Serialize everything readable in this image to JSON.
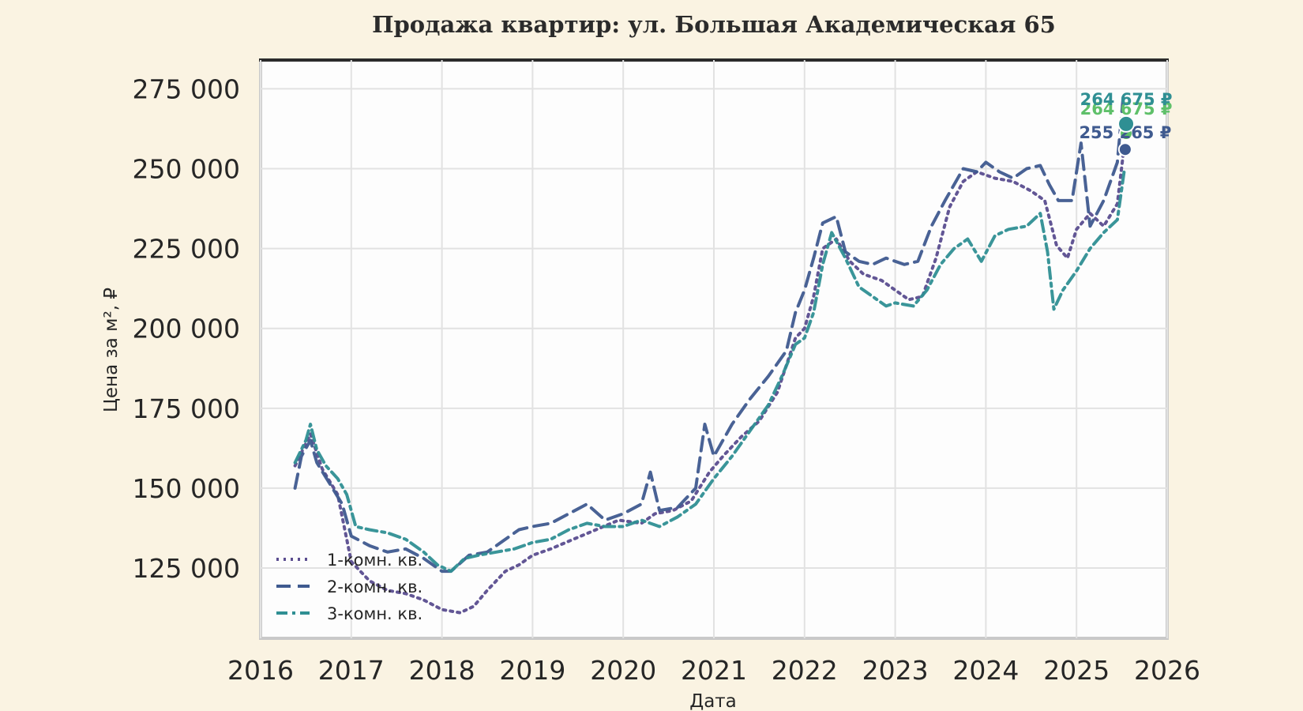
{
  "chart_data": {
    "type": "line",
    "title": "Продажа квартир: ул. Большая Академическая 65",
    "xlabel": "Дата",
    "ylabel": "Цена за м², ₽",
    "x_ticks": [
      "2016",
      "2017",
      "2018",
      "2019",
      "2020",
      "2021",
      "2022",
      "2023",
      "2024",
      "2025",
      "2026"
    ],
    "y_ticks": [
      "125 000",
      "150 000",
      "175 000",
      "200 000",
      "225 000",
      "250 000",
      "275 000"
    ],
    "xlim": [
      2016,
      2026
    ],
    "ylim": [
      103000,
      284000
    ],
    "grid": true,
    "legend_position": "lower-left",
    "series": [
      {
        "name": "1-комн. кв.",
        "color": "#5a4d8f",
        "dash": "dotted",
        "points": [
          [
            2016.38,
            157000
          ],
          [
            2016.55,
            167000
          ],
          [
            2016.68,
            156000
          ],
          [
            2016.85,
            148000
          ],
          [
            2017.0,
            127000
          ],
          [
            2017.2,
            121000
          ],
          [
            2017.4,
            118000
          ],
          [
            2017.6,
            117000
          ],
          [
            2017.8,
            115000
          ],
          [
            2018.0,
            112000
          ],
          [
            2018.2,
            111000
          ],
          [
            2018.35,
            113000
          ],
          [
            2018.5,
            118000
          ],
          [
            2018.7,
            124000
          ],
          [
            2018.85,
            126000
          ],
          [
            2019.0,
            129000
          ],
          [
            2019.2,
            131000
          ],
          [
            2019.45,
            134000
          ],
          [
            2019.7,
            137000
          ],
          [
            2019.95,
            140000
          ],
          [
            2020.2,
            139000
          ],
          [
            2020.35,
            142000
          ],
          [
            2020.55,
            143000
          ],
          [
            2020.75,
            146000
          ],
          [
            2020.95,
            155000
          ],
          [
            2021.1,
            160000
          ],
          [
            2021.3,
            166000
          ],
          [
            2021.5,
            171000
          ],
          [
            2021.7,
            180000
          ],
          [
            2021.9,
            197000
          ],
          [
            2022.0,
            200000
          ],
          [
            2022.1,
            210000
          ],
          [
            2022.2,
            225000
          ],
          [
            2022.35,
            228000
          ],
          [
            2022.5,
            221000
          ],
          [
            2022.65,
            217000
          ],
          [
            2022.85,
            215000
          ],
          [
            2023.0,
            212000
          ],
          [
            2023.15,
            209000
          ],
          [
            2023.3,
            210000
          ],
          [
            2023.45,
            222000
          ],
          [
            2023.6,
            238000
          ],
          [
            2023.75,
            246000
          ],
          [
            2023.9,
            249000
          ],
          [
            2024.1,
            247000
          ],
          [
            2024.3,
            246000
          ],
          [
            2024.5,
            243000
          ],
          [
            2024.65,
            240000
          ],
          [
            2024.78,
            226000
          ],
          [
            2024.9,
            222000
          ],
          [
            2025.0,
            231000
          ],
          [
            2025.15,
            236000
          ],
          [
            2025.3,
            232000
          ],
          [
            2025.45,
            239000
          ],
          [
            2025.53,
            258000
          ]
        ],
        "end_label": "264 675 ₽",
        "end_value": 261000
      },
      {
        "name": "2-комн. кв.",
        "color": "#3f5a8f",
        "dash": "dashed",
        "points": [
          [
            2016.38,
            150000
          ],
          [
            2016.45,
            160000
          ],
          [
            2016.55,
            165000
          ],
          [
            2016.62,
            158000
          ],
          [
            2016.75,
            152000
          ],
          [
            2016.9,
            145000
          ],
          [
            2017.0,
            135000
          ],
          [
            2017.2,
            132000
          ],
          [
            2017.4,
            130000
          ],
          [
            2017.6,
            131000
          ],
          [
            2017.8,
            128000
          ],
          [
            2018.0,
            124000
          ],
          [
            2018.1,
            124000
          ],
          [
            2018.3,
            129000
          ],
          [
            2018.5,
            130000
          ],
          [
            2018.7,
            134000
          ],
          [
            2018.85,
            137000
          ],
          [
            2019.0,
            138000
          ],
          [
            2019.2,
            139000
          ],
          [
            2019.4,
            142000
          ],
          [
            2019.6,
            145000
          ],
          [
            2019.8,
            140000
          ],
          [
            2020.0,
            142000
          ],
          [
            2020.2,
            145000
          ],
          [
            2020.3,
            155000
          ],
          [
            2020.4,
            143000
          ],
          [
            2020.6,
            144000
          ],
          [
            2020.8,
            150000
          ],
          [
            2020.9,
            170000
          ],
          [
            2021.0,
            160000
          ],
          [
            2021.2,
            170000
          ],
          [
            2021.4,
            178000
          ],
          [
            2021.6,
            185000
          ],
          [
            2021.8,
            193000
          ],
          [
            2021.9,
            205000
          ],
          [
            2022.0,
            212000
          ],
          [
            2022.1,
            222000
          ],
          [
            2022.2,
            233000
          ],
          [
            2022.35,
            235000
          ],
          [
            2022.45,
            224000
          ],
          [
            2022.6,
            221000
          ],
          [
            2022.75,
            220000
          ],
          [
            2022.9,
            222000
          ],
          [
            2023.1,
            220000
          ],
          [
            2023.25,
            221000
          ],
          [
            2023.4,
            232000
          ],
          [
            2023.55,
            240000
          ],
          [
            2023.75,
            250000
          ],
          [
            2023.9,
            249000
          ],
          [
            2024.0,
            252000
          ],
          [
            2024.15,
            249000
          ],
          [
            2024.3,
            247000
          ],
          [
            2024.45,
            250000
          ],
          [
            2024.6,
            251000
          ],
          [
            2024.7,
            245000
          ],
          [
            2024.8,
            240000
          ],
          [
            2024.95,
            240000
          ],
          [
            2025.05,
            258000
          ],
          [
            2025.15,
            232000
          ],
          [
            2025.3,
            240000
          ],
          [
            2025.45,
            252000
          ],
          [
            2025.52,
            274000
          ]
        ],
        "end_label": "255 265 ₽",
        "end_value": 256000
      },
      {
        "name": "3-комн. кв.",
        "color": "#2f8f93",
        "dash": "dashdot",
        "points": [
          [
            2016.38,
            158000
          ],
          [
            2016.5,
            165000
          ],
          [
            2016.55,
            170000
          ],
          [
            2016.62,
            162000
          ],
          [
            2016.72,
            157000
          ],
          [
            2016.85,
            153000
          ],
          [
            2016.95,
            148000
          ],
          [
            2017.05,
            138000
          ],
          [
            2017.2,
            137000
          ],
          [
            2017.4,
            136000
          ],
          [
            2017.6,
            134000
          ],
          [
            2017.8,
            130000
          ],
          [
            2017.95,
            126000
          ],
          [
            2018.1,
            124000
          ],
          [
            2018.25,
            128000
          ],
          [
            2018.4,
            129000
          ],
          [
            2018.6,
            130000
          ],
          [
            2018.8,
            131000
          ],
          [
            2019.0,
            133000
          ],
          [
            2019.2,
            134000
          ],
          [
            2019.4,
            137000
          ],
          [
            2019.6,
            139000
          ],
          [
            2019.8,
            138000
          ],
          [
            2020.0,
            138000
          ],
          [
            2020.2,
            140000
          ],
          [
            2020.4,
            138000
          ],
          [
            2020.6,
            141000
          ],
          [
            2020.8,
            145000
          ],
          [
            2021.0,
            153000
          ],
          [
            2021.2,
            160000
          ],
          [
            2021.4,
            168000
          ],
          [
            2021.6,
            176000
          ],
          [
            2021.75,
            185000
          ],
          [
            2021.9,
            195000
          ],
          [
            2022.0,
            197000
          ],
          [
            2022.1,
            205000
          ],
          [
            2022.2,
            220000
          ],
          [
            2022.3,
            230000
          ],
          [
            2022.45,
            222000
          ],
          [
            2022.6,
            213000
          ],
          [
            2022.75,
            210000
          ],
          [
            2022.9,
            207000
          ],
          [
            2023.0,
            208000
          ],
          [
            2023.2,
            207000
          ],
          [
            2023.35,
            212000
          ],
          [
            2023.5,
            220000
          ],
          [
            2023.65,
            225000
          ],
          [
            2023.8,
            228000
          ],
          [
            2023.95,
            221000
          ],
          [
            2024.1,
            229000
          ],
          [
            2024.25,
            231000
          ],
          [
            2024.45,
            232000
          ],
          [
            2024.6,
            236000
          ],
          [
            2024.68,
            224000
          ],
          [
            2024.75,
            206000
          ],
          [
            2024.85,
            212000
          ],
          [
            2025.0,
            218000
          ],
          [
            2025.15,
            225000
          ],
          [
            2025.3,
            230000
          ],
          [
            2025.45,
            234000
          ],
          [
            2025.53,
            250000
          ]
        ],
        "end_label": "264 675 ₽",
        "end_value": 264000
      }
    ]
  }
}
